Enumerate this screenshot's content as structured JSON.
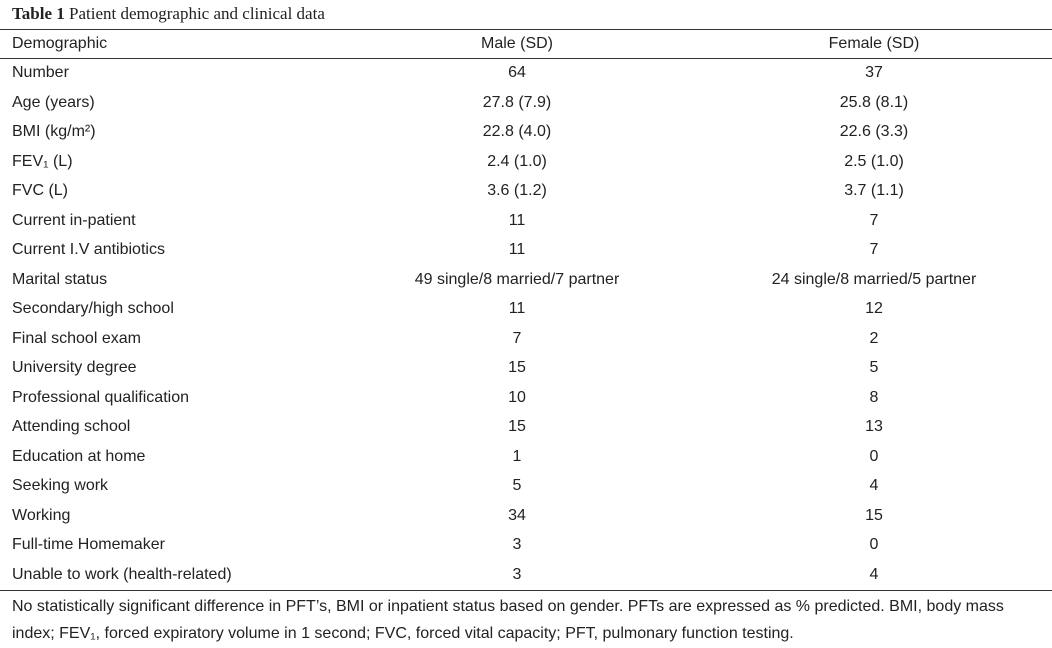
{
  "title": {
    "label": "Table 1",
    "text": "Patient demographic and clinical data"
  },
  "table": {
    "header": [
      "Demographic",
      "Male (SD)",
      "Female (SD)"
    ],
    "rows": [
      [
        "Number",
        "64",
        "37"
      ],
      [
        "Age (years)",
        "27.8 (7.9)",
        "25.8 (8.1)"
      ],
      [
        "BMI (kg/m²)",
        "22.8 (4.0)",
        "22.6 (3.3)"
      ],
      [
        "FEV₁ (L)",
        "2.4 (1.0)",
        "2.5 (1.0)"
      ],
      [
        "FVC (L)",
        "3.6 (1.2)",
        "3.7 (1.1)"
      ],
      [
        "Current in-patient",
        "11",
        "7"
      ],
      [
        "Current I.V antibiotics",
        "11",
        "7"
      ],
      [
        "Marital status",
        "49 single/8 married/7 partner",
        "24 single/8 married/5 partner"
      ],
      [
        "Secondary/high school",
        "11",
        "12"
      ],
      [
        "Final school exam",
        "7",
        "2"
      ],
      [
        "University degree",
        "15",
        "5"
      ],
      [
        "Professional qualification",
        "10",
        "8"
      ],
      [
        "Attending school",
        "15",
        "13"
      ],
      [
        "Education at home",
        "1",
        "0"
      ],
      [
        "Seeking work",
        "5",
        "4"
      ],
      [
        "Working",
        "34",
        "15"
      ],
      [
        "Full-time Homemaker",
        "3",
        "0"
      ],
      [
        "Unable to work (health-related)",
        "3",
        "4"
      ]
    ]
  },
  "footnote": "No statistically significant difference in PFT’s, BMI or inpatient status based on gender. PFTs are expressed as % predicted. BMI, body mass index; FEV₁, forced expiratory volume in 1 second; FVC, forced vital capacity; PFT, pulmonary function testing."
}
